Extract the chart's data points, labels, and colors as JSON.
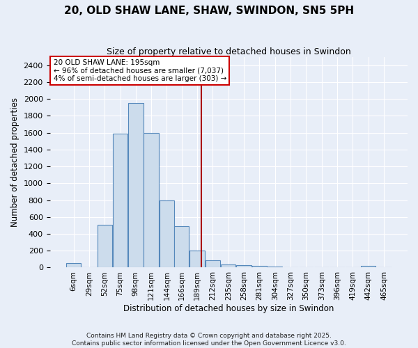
{
  "title": "20, OLD SHAW LANE, SHAW, SWINDON, SN5 5PH",
  "subtitle": "Size of property relative to detached houses in Swindon",
  "xlabel": "Distribution of detached houses by size in Swindon",
  "ylabel": "Number of detached properties",
  "bar_color": "#ccdcec",
  "bar_edge_color": "#5588bb",
  "background_color": "#e8eef8",
  "grid_color": "#ffffff",
  "bin_labels": [
    "6sqm",
    "29sqm",
    "52sqm",
    "75sqm",
    "98sqm",
    "121sqm",
    "144sqm",
    "166sqm",
    "189sqm",
    "212sqm",
    "235sqm",
    "258sqm",
    "281sqm",
    "304sqm",
    "327sqm",
    "350sqm",
    "373sqm",
    "396sqm",
    "419sqm",
    "442sqm",
    "465sqm"
  ],
  "bar_values": [
    50,
    0,
    510,
    1590,
    1950,
    1600,
    800,
    490,
    200,
    90,
    40,
    25,
    20,
    10,
    5,
    5,
    0,
    0,
    0,
    20,
    0
  ],
  "ylim": [
    0,
    2500
  ],
  "yticks": [
    0,
    200,
    400,
    600,
    800,
    1000,
    1200,
    1400,
    1600,
    1800,
    2000,
    2200,
    2400
  ],
  "vline_x": 195,
  "vline_color": "#aa0000",
  "annotation_line1": "20 OLD SHAW LANE: 195sqm",
  "annotation_line2": "← 96% of detached houses are smaller (7,037)",
  "annotation_line3": "4% of semi-detached houses are larger (303) →",
  "annotation_box_color": "#ffffff",
  "annotation_edge_color": "#cc0000",
  "footer_line1": "Contains HM Land Registry data © Crown copyright and database right 2025.",
  "footer_line2": "Contains public sector information licensed under the Open Government Licence v3.0.",
  "bin_width": 23,
  "property_sqm": 195,
  "num_bins": 21
}
